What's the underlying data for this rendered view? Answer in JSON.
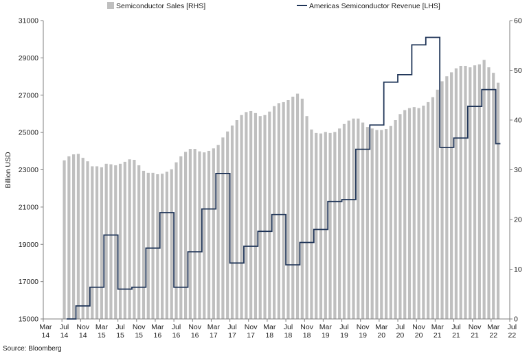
{
  "chart_data": {
    "type": "bar",
    "source": "Source: Bloomberg",
    "ylabel": "Billion USD",
    "legend_placement": "top",
    "grid": false,
    "left_axis": {
      "min": 15000,
      "max": 31000,
      "step": 2000,
      "ticks": [
        "15000",
        "17000",
        "19000",
        "21000",
        "23000",
        "25000",
        "27000",
        "29000",
        "31000"
      ]
    },
    "right_axis": {
      "min": 0,
      "max": 60,
      "step": 10,
      "ticks": [
        "0",
        "10",
        "20",
        "30",
        "40",
        "50",
        "60"
      ]
    },
    "x_tick_labels": [
      [
        "Mar",
        "14"
      ],
      [
        "Jul",
        "14"
      ],
      [
        "Nov",
        "14"
      ],
      [
        "Mar",
        "15"
      ],
      [
        "Jul",
        "15"
      ],
      [
        "Nov",
        "15"
      ],
      [
        "Mar",
        "16"
      ],
      [
        "Jul",
        "16"
      ],
      [
        "Nov",
        "16"
      ],
      [
        "Mar",
        "17"
      ],
      [
        "Jul",
        "17"
      ],
      [
        "Nov",
        "17"
      ],
      [
        "Mar",
        "18"
      ],
      [
        "Jul",
        "18"
      ],
      [
        "Nov",
        "18"
      ],
      [
        "Mar",
        "19"
      ],
      [
        "Jul",
        "19"
      ],
      [
        "Nov",
        "19"
      ],
      [
        "Mar",
        "20"
      ],
      [
        "Jul",
        "20"
      ],
      [
        "Nov",
        "20"
      ],
      [
        "Mar",
        "21"
      ],
      [
        "Jul",
        "21"
      ],
      [
        "Nov",
        "21"
      ],
      [
        "Mar",
        "22"
      ],
      [
        "Jul",
        "22"
      ]
    ],
    "months_start": "2014-03",
    "series": [
      {
        "name": "Semiconductor Sales [RHS]",
        "kind": "bar",
        "axis": "right",
        "color": "#bfbfbf",
        "start_index": 4,
        "values": [
          31.9,
          32.7,
          33.1,
          33.2,
          32.4,
          31.7,
          30.7,
          30.7,
          30.5,
          31.2,
          31.1,
          30.9,
          31.2,
          31.6,
          32.1,
          32.0,
          30.9,
          29.8,
          29.4,
          29.4,
          29.1,
          29.2,
          29.6,
          30.1,
          31.5,
          32.7,
          33.6,
          34.2,
          34.2,
          33.7,
          33.5,
          33.8,
          34.3,
          35.0,
          36.5,
          37.7,
          38.9,
          40.0,
          41.0,
          41.6,
          41.8,
          41.4,
          40.8,
          41.0,
          41.7,
          42.8,
          43.4,
          43.6,
          44.0,
          44.7,
          45.3,
          44.3,
          40.8,
          38.1,
          37.4,
          37.3,
          37.6,
          37.4,
          37.6,
          38.3,
          39.2,
          39.9,
          40.3,
          40.3,
          39.5,
          38.6,
          38.3,
          38.0,
          38.0,
          38.2,
          38.8,
          40.0,
          41.2,
          42.0,
          42.4,
          42.6,
          42.4,
          42.9,
          43.6,
          44.6,
          46.1,
          47.8,
          48.8,
          49.6,
          50.4,
          50.9,
          50.9,
          50.6,
          51.0,
          51.2,
          52.1,
          50.6,
          49.5,
          47.5
        ]
      },
      {
        "name": "Americas Semiconductor Revenue [LHS]",
        "kind": "step-line",
        "axis": "left",
        "color": "#1f3457",
        "quarters": [
          {
            "from": 5,
            "to": 7,
            "value": 15000
          },
          {
            "from": 7,
            "to": 10,
            "value": 15700
          },
          {
            "from": 10,
            "to": 13,
            "value": 16700
          },
          {
            "from": 13,
            "to": 16,
            "value": 19500
          },
          {
            "from": 16,
            "to": 19,
            "value": 16600
          },
          {
            "from": 19,
            "to": 22,
            "value": 16700
          },
          {
            "from": 22,
            "to": 25,
            "value": 18800
          },
          {
            "from": 25,
            "to": 28,
            "value": 20700
          },
          {
            "from": 28,
            "to": 31,
            "value": 16700
          },
          {
            "from": 31,
            "to": 34,
            "value": 18600
          },
          {
            "from": 34,
            "to": 37,
            "value": 20900
          },
          {
            "from": 37,
            "to": 40,
            "value": 22800
          },
          {
            "from": 40,
            "to": 43,
            "value": 18000
          },
          {
            "from": 43,
            "to": 46,
            "value": 18900
          },
          {
            "from": 46,
            "to": 49,
            "value": 19700
          },
          {
            "from": 49,
            "to": 52,
            "value": 20600
          },
          {
            "from": 52,
            "to": 55,
            "value": 17900
          },
          {
            "from": 55,
            "to": 58,
            "value": 19100
          },
          {
            "from": 58,
            "to": 61,
            "value": 19800
          },
          {
            "from": 61,
            "to": 64,
            "value": 21300
          },
          {
            "from": 64,
            "to": 67,
            "value": 21400
          },
          {
            "from": 67,
            "to": 70,
            "value": 24100
          },
          {
            "from": 70,
            "to": 73,
            "value": 25400
          },
          {
            "from": 73,
            "to": 76,
            "value": 27700
          },
          {
            "from": 76,
            "to": 79,
            "value": 28100
          },
          {
            "from": 79,
            "to": 82,
            "value": 29700
          },
          {
            "from": 82,
            "to": 85,
            "value": 30100
          },
          {
            "from": 85,
            "to": 88,
            "value": 24200
          },
          {
            "from": 88,
            "to": 91,
            "value": 24700
          },
          {
            "from": 91,
            "to": 94,
            "value": 26400
          },
          {
            "from": 94,
            "to": 97,
            "value": 27300
          },
          {
            "from": 97,
            "to": 98,
            "value": 24400
          }
        ]
      }
    ]
  }
}
